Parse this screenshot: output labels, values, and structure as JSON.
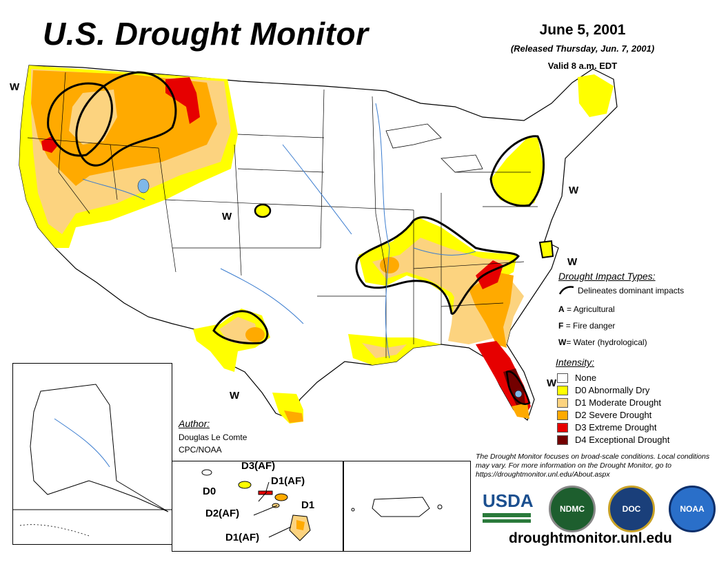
{
  "header": {
    "title": "U.S. Drought Monitor",
    "date": "June 5, 2001",
    "released": "(Released Thursday, Jun. 7, 2001)",
    "valid": "Valid 8 a.m. EDT"
  },
  "map_labels": {
    "w_northwest": "W",
    "w_nebraska": "W",
    "w_texas": "W",
    "w_northeast": "W",
    "w_midatlantic": "W",
    "w_florida": "W"
  },
  "hawaii_labels": {
    "d0": "D0",
    "d3af": "D3(AF)",
    "d1af_top": "D1(AF)",
    "d1": "D1",
    "d2af": "D2(AF)",
    "d1af_bottom": "D1(AF)"
  },
  "impact_legend": {
    "title": "Drought Impact Types:",
    "delineates": "Delineates dominant impacts",
    "agricultural_key": "A",
    "agricultural": "= Agricultural",
    "fire_key": "F",
    "fire": "= Fire danger",
    "water_key": "W",
    "water": "= Water (hydrological)"
  },
  "intensity_legend": {
    "title": "Intensity:",
    "items": [
      {
        "label": "None",
        "color": "#ffffff"
      },
      {
        "label": "D0 Abnormally Dry",
        "color": "#ffff00"
      },
      {
        "label": "D1 Moderate Drought",
        "color": "#fcd37f"
      },
      {
        "label": "D2 Severe Drought",
        "color": "#ffaa00"
      },
      {
        "label": "D3 Extreme Drought",
        "color": "#e60000"
      },
      {
        "label": "D4 Exceptional Drought",
        "color": "#730000"
      }
    ]
  },
  "author": {
    "title": "Author:",
    "name": "Douglas Le Comte",
    "org": "CPC/NOAA"
  },
  "disclaimer": "The Drought Monitor focuses on broad-scale conditions. Local conditions may vary. For more information on the Drought Monitor, go to https://droughtmonitor.unl.edu/About.aspx",
  "logos": {
    "usda": "USDA",
    "ndmc": "NDMC",
    "commerce": "DOC",
    "noaa": "NOAA"
  },
  "footer_url": "droughtmonitor.unl.edu",
  "colors": {
    "d0": "#ffff00",
    "d1": "#fcd37f",
    "d2": "#ffaa00",
    "d3": "#e60000",
    "d4": "#730000",
    "water": "#7fb8e8"
  }
}
